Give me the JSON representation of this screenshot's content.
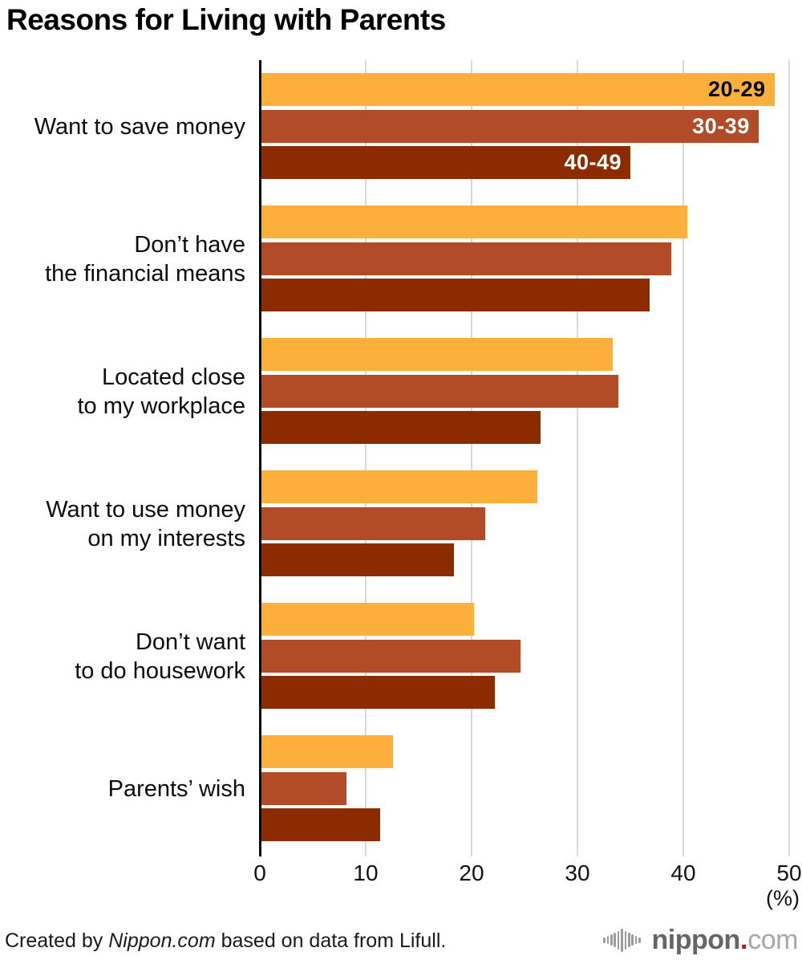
{
  "title": "Reasons for Living with Parents",
  "chart_data": {
    "type": "bar",
    "orientation": "horizontal",
    "categories": [
      "Want to save money",
      "Don’t have\nthe financial means",
      "Located close\nto my workplace",
      "Want to use money\non my interests",
      "Don’t want\nto do housework",
      "Parents’ wish"
    ],
    "series": [
      {
        "name": "20-29",
        "color": "#FDAF3C",
        "label_color": "#000000",
        "values": [
          48.6,
          40.4,
          33.3,
          26.2,
          20.2,
          12.6
        ]
      },
      {
        "name": "30-39",
        "color": "#B24B27",
        "label_color": "#FFFFFF",
        "values": [
          47.1,
          38.9,
          33.9,
          21.3,
          24.6,
          8.2
        ]
      },
      {
        "name": "40-49",
        "color": "#8C2A00",
        "label_color": "#FFFFFF",
        "values": [
          35.0,
          36.8,
          26.5,
          18.3,
          22.2,
          11.4
        ]
      }
    ],
    "xlim": [
      0,
      50
    ],
    "xticks": [
      0,
      10,
      20,
      30,
      40,
      50
    ],
    "x_unit_label": "(%)",
    "grid": "vertical",
    "legend_position": "inside-first-group-bars",
    "axis_color": "#000000",
    "gridline_color": "#D9D9D9"
  },
  "footer": {
    "credit_prefix": "Created by ",
    "credit_source": "Nippon.com",
    "credit_suffix": " based on data from Lifull."
  },
  "logo": {
    "icon": "soundwave-icon",
    "text_main": "nippon",
    "text_dot": ".",
    "text_tld": "com"
  }
}
